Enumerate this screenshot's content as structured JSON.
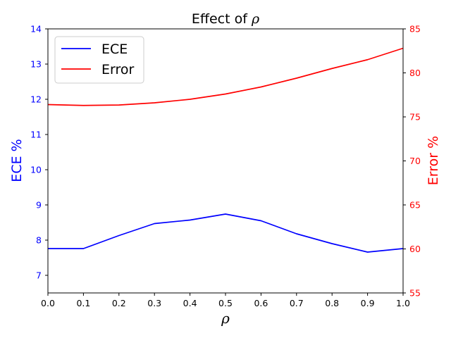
{
  "chart_data": {
    "type": "line",
    "title": "Effect of ",
    "title_symbol": "ρ",
    "xlabel": "ρ",
    "ylabel_left": "ECE %",
    "ylabel_right": "Error %",
    "x": [
      0.0,
      0.1,
      0.2,
      0.3,
      0.4,
      0.5,
      0.6,
      0.7,
      0.8,
      0.9,
      1.0
    ],
    "xlim": [
      0.0,
      1.0
    ],
    "xticks": [
      "0.0",
      "0.1",
      "0.2",
      "0.3",
      "0.4",
      "0.5",
      "0.6",
      "0.7",
      "0.8",
      "0.9",
      "1.0"
    ],
    "ylim_left": [
      6.5,
      14
    ],
    "yticks_left": [
      7,
      8,
      9,
      10,
      11,
      12,
      13,
      14
    ],
    "ylim_right": [
      55,
      85
    ],
    "yticks_right": [
      55,
      60,
      65,
      70,
      75,
      80,
      85
    ],
    "grid": false,
    "legend_position": "top-left",
    "colors": {
      "ece": "#0000ff",
      "error": "#ff0000",
      "axis": "#000000"
    },
    "series": [
      {
        "name": "ECE",
        "axis": "left",
        "color": "#0000ff",
        "values": [
          7.76,
          7.76,
          8.13,
          8.47,
          8.57,
          8.74,
          8.55,
          8.18,
          7.9,
          7.66,
          7.76
        ]
      },
      {
        "name": "Error",
        "axis": "right",
        "color": "#ff0000",
        "values": [
          76.4,
          76.3,
          76.35,
          76.6,
          77.0,
          77.6,
          78.4,
          79.4,
          80.5,
          81.5,
          82.8
        ]
      }
    ]
  }
}
